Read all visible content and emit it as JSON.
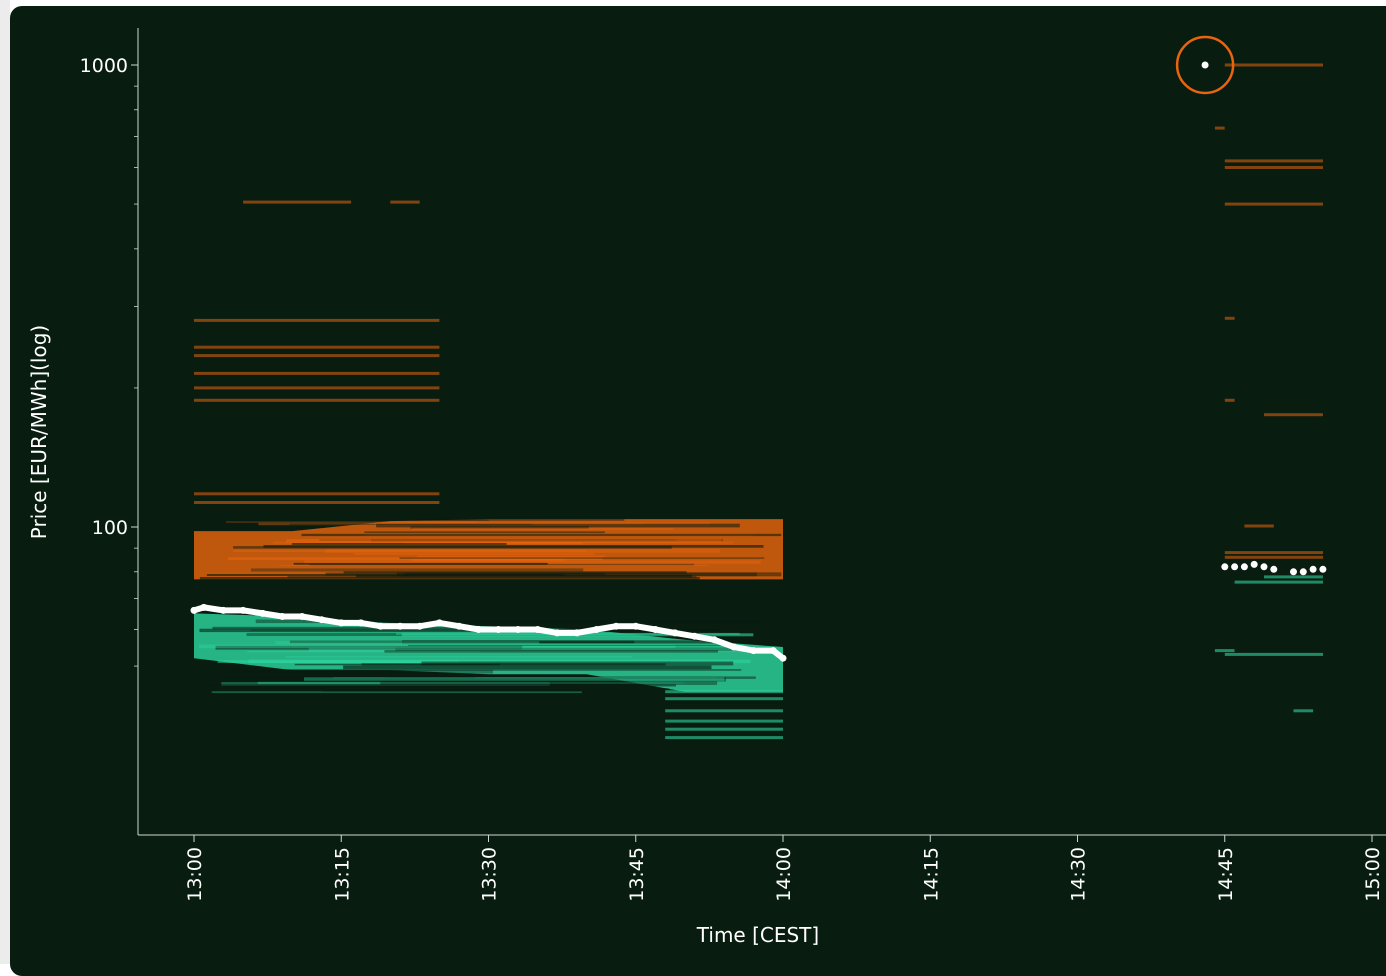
{
  "chart_data": {
    "type": "scatter",
    "title": "",
    "xlabel": "Time [CEST]",
    "ylabel": "Price [EUR/MWh](log)",
    "x_ticks": [
      "13:00",
      "13:15",
      "13:30",
      "13:45",
      "14:00",
      "14:15",
      "14:30",
      "14:45",
      "15:00"
    ],
    "y_ticks": [
      "100",
      "1000"
    ],
    "y_scale": "log",
    "xlim": [
      "12:54",
      "15:00"
    ],
    "ylim": [
      42,
      1200
    ],
    "grid": false,
    "colors": {
      "background": "#081c10",
      "sell_orders": "#e8640e",
      "buy_orders": "#2ed6a0",
      "last_price": "#ffffff",
      "highlight": "#e8640e",
      "axis": "#cfd8d2"
    },
    "series": [
      {
        "name": "",
        "role": "sell",
        "x": [
          "13:00",
          "13:10",
          "13:20",
          "13:30",
          "13:40",
          "13:50",
          "14:00"
        ],
        "y_low": [
          77,
          77,
          77,
          77,
          77,
          77,
          77
        ],
        "y_high": [
          98,
          98,
          103,
          104,
          104,
          104,
          104
        ]
      },
      {
        "name": "",
        "role": "buy",
        "x": [
          "13:00",
          "13:10",
          "13:20",
          "13:30",
          "13:40",
          "13:50",
          "14:00"
        ],
        "y_low": [
          52,
          49,
          49,
          48,
          48,
          44,
          44
        ],
        "y_high": [
          65,
          64,
          62,
          61,
          60,
          57,
          55
        ]
      },
      {
        "name": "",
        "role": "last_price",
        "x": [
          "13:00",
          "13:01",
          "13:03",
          "13:05",
          "13:07",
          "13:09",
          "13:11",
          "13:13",
          "13:15",
          "13:17",
          "13:19",
          "13:21",
          "13:23",
          "13:25",
          "13:27",
          "13:29",
          "13:31",
          "13:33",
          "13:35",
          "13:37",
          "13:39",
          "13:41",
          "13:43",
          "13:45",
          "13:47",
          "13:49",
          "13:51",
          "13:53",
          "13:55",
          "13:57",
          "13:59",
          "14:00"
        ],
        "y": [
          66,
          67,
          66,
          66,
          65,
          64,
          64,
          63,
          62,
          62,
          61,
          61,
          61,
          62,
          61,
          60,
          60,
          60,
          60,
          59,
          59,
          60,
          61,
          61,
          60,
          59,
          58,
          57,
          55,
          54,
          54,
          52
        ]
      },
      {
        "name": "",
        "role": "last_price",
        "x": [
          "14:45",
          "14:46",
          "14:47",
          "14:48",
          "14:49",
          "14:50",
          "14:52",
          "14:53",
          "14:54",
          "14:55"
        ],
        "y": [
          82,
          82,
          82,
          83,
          82,
          81,
          80,
          80,
          81,
          81
        ]
      }
    ],
    "annotations": [
      {
        "type": "highlighted-point",
        "x": "14:43",
        "y": 1000
      }
    ]
  }
}
